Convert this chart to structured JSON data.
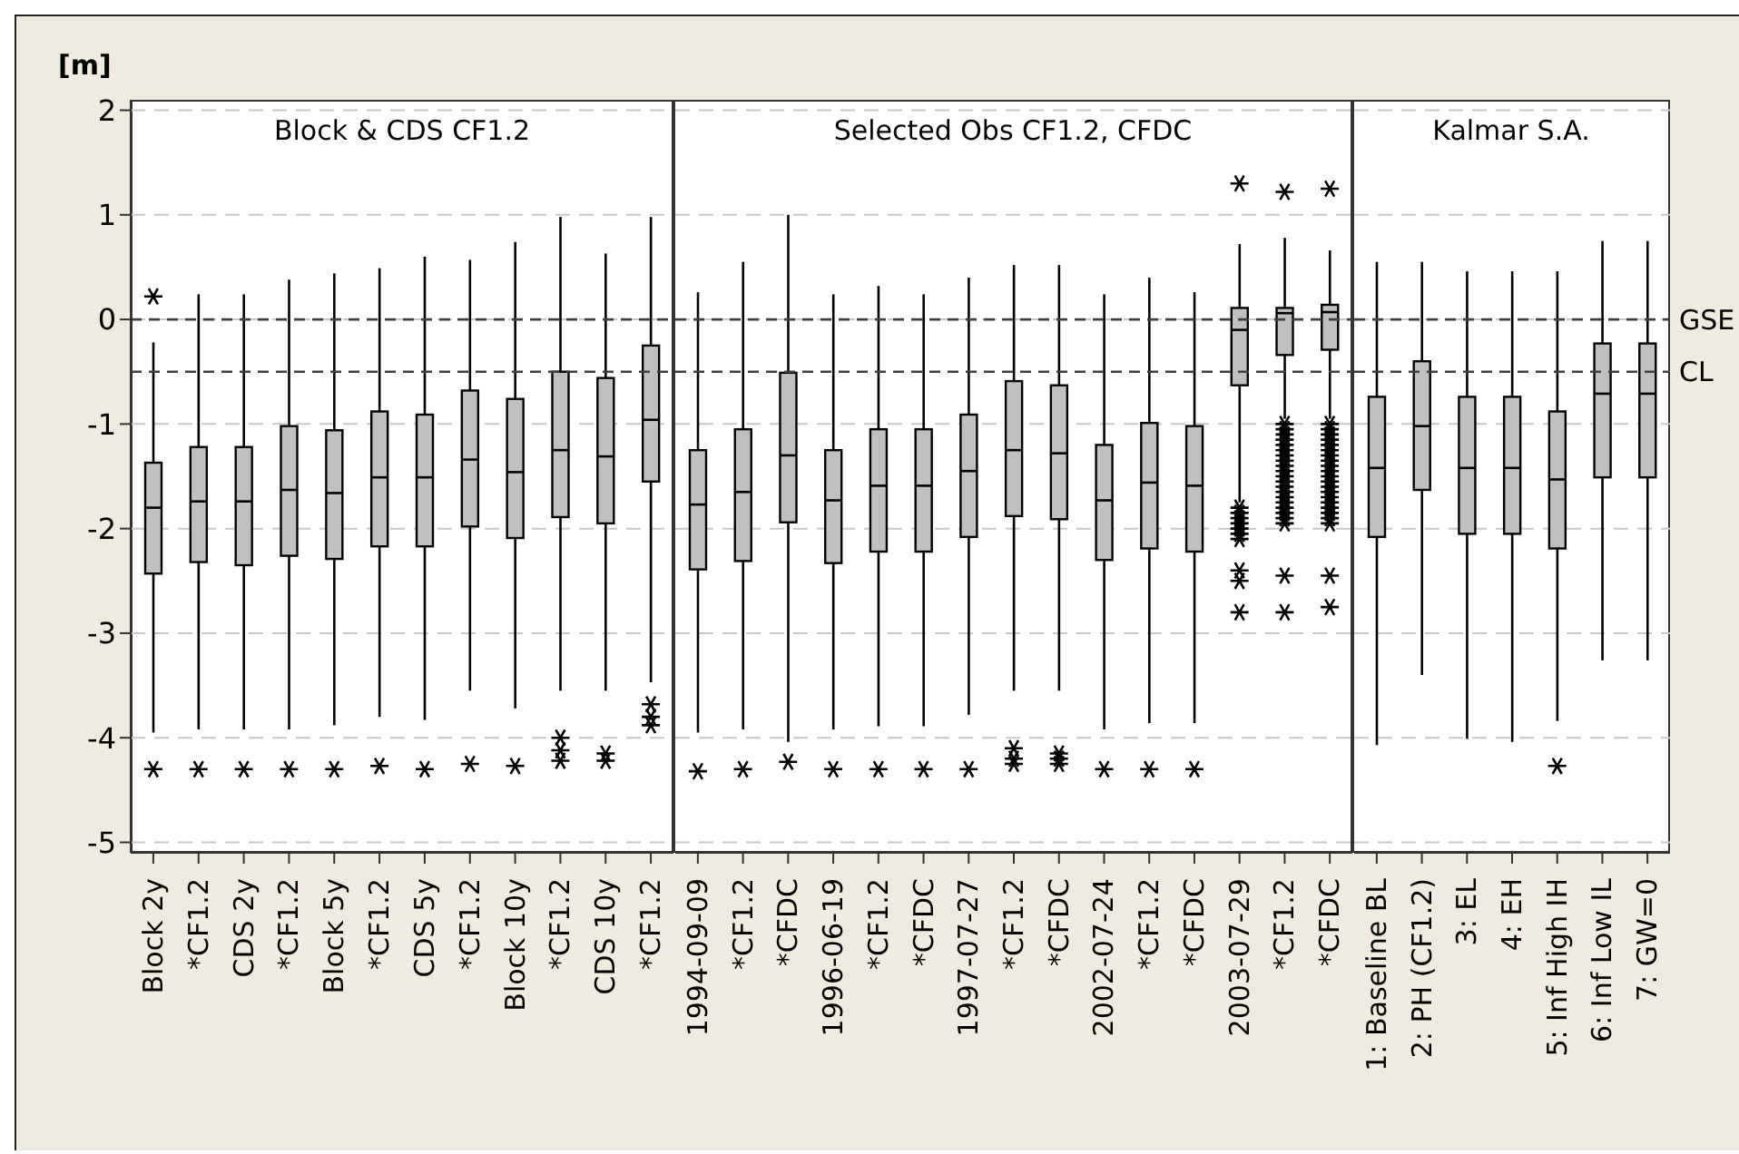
{
  "chart_data": [
    {
      "type": "box",
      "title": "Block & CDS CF1.2",
      "ylabel": "[m]",
      "color": "#c0c0c0",
      "marker": "star",
      "grid": "y",
      "ylim": [
        -5.1,
        2.1
      ],
      "yticks": [
        -5,
        -4,
        -3,
        -2,
        -1,
        0,
        1,
        2
      ],
      "categories": [
        "Block 2y",
        "*CF1.2",
        "CDS 2y",
        "*CF1.2",
        "Block 5y",
        "*CF1.2",
        "CDS 5y",
        "*CF1.2",
        "Block 10y",
        "*CF1.2",
        "CDS 10y",
        "*CF1.2"
      ],
      "boxes": [
        {
          "low": -3.95,
          "q1": -2.43,
          "median": -1.8,
          "q3": -1.37,
          "high": -0.22,
          "outliers": [
            0.22,
            -4.3
          ]
        },
        {
          "low": -3.92,
          "q1": -2.32,
          "median": -1.74,
          "q3": -1.22,
          "high": 0.24,
          "outliers": [
            -4.3
          ]
        },
        {
          "low": -3.92,
          "q1": -2.35,
          "median": -1.74,
          "q3": -1.22,
          "high": 0.24,
          "outliers": [
            -4.3
          ]
        },
        {
          "low": -3.92,
          "q1": -2.26,
          "median": -1.63,
          "q3": -1.02,
          "high": 0.38,
          "outliers": [
            -4.3
          ]
        },
        {
          "low": -3.88,
          "q1": -2.29,
          "median": -1.66,
          "q3": -1.06,
          "high": 0.44,
          "outliers": [
            -4.3
          ]
        },
        {
          "low": -3.8,
          "q1": -2.17,
          "median": -1.51,
          "q3": -0.88,
          "high": 0.49,
          "outliers": [
            -4.27
          ]
        },
        {
          "low": -3.83,
          "q1": -2.17,
          "median": -1.51,
          "q3": -0.91,
          "high": 0.6,
          "outliers": [
            -4.3
          ]
        },
        {
          "low": -3.55,
          "q1": -1.98,
          "median": -1.34,
          "q3": -0.68,
          "high": 0.57,
          "outliers": [
            -4.25
          ]
        },
        {
          "low": -3.72,
          "q1": -2.09,
          "median": -1.46,
          "q3": -0.76,
          "high": 0.74,
          "outliers": [
            -4.27
          ]
        },
        {
          "low": -3.55,
          "q1": -1.89,
          "median": -1.25,
          "q3": -0.5,
          "high": 0.98,
          "outliers": [
            -4.0,
            -4.12,
            -4.22
          ]
        },
        {
          "low": -3.55,
          "q1": -1.95,
          "median": -1.31,
          "q3": -0.56,
          "high": 0.63,
          "outliers": [
            -4.15,
            -4.22
          ]
        },
        {
          "low": -3.47,
          "q1": -1.55,
          "median": -0.96,
          "q3": -0.25,
          "high": 0.98,
          "outliers": [
            -3.68,
            -3.8,
            -3.88
          ]
        }
      ],
      "ref_lines": [
        {
          "axis": "y",
          "value": 0,
          "color": "#404040",
          "line_style": "dashed"
        },
        {
          "axis": "y",
          "value": -0.5,
          "color": "#404040",
          "line_style": "dashed"
        }
      ]
    },
    {
      "type": "box",
      "title": "Selected Obs CF1.2, CFDC",
      "color": "#c0c0c0",
      "marker": "star",
      "grid": "y",
      "tick_labels": "x",
      "ylim": [
        -5.1,
        2.1
      ],
      "yticks": [
        -5,
        -4,
        -3,
        -2,
        -1,
        0,
        1,
        2
      ],
      "categories": [
        "1994-09-09",
        "*CF1.2",
        "*CFDC",
        "1996-06-19",
        "*CF1.2",
        "*CFDC",
        "1997-07-27",
        "*CF1.2",
        "*CFDC",
        "2002-07-24",
        "*CF1.2",
        "*CFDC",
        "2003-07-29",
        "*CF1.2",
        "*CFDC"
      ],
      "boxes": [
        {
          "low": -3.95,
          "q1": -2.39,
          "median": -1.77,
          "q3": -1.25,
          "high": 0.26,
          "outliers": [
            -4.32
          ]
        },
        {
          "low": -3.92,
          "q1": -2.31,
          "median": -1.65,
          "q3": -1.05,
          "high": 0.55,
          "outliers": [
            -4.3
          ]
        },
        {
          "low": -4.04,
          "q1": -1.94,
          "median": -1.3,
          "q3": -0.51,
          "high": 1.0,
          "outliers": [
            -4.23
          ]
        },
        {
          "low": -3.92,
          "q1": -2.33,
          "median": -1.73,
          "q3": -1.25,
          "high": 0.24,
          "outliers": [
            -4.3
          ]
        },
        {
          "low": -3.89,
          "q1": -2.22,
          "median": -1.59,
          "q3": -1.05,
          "high": 0.32,
          "outliers": [
            -4.3
          ]
        },
        {
          "low": -3.89,
          "q1": -2.22,
          "median": -1.59,
          "q3": -1.05,
          "high": 0.24,
          "outliers": [
            -4.3
          ]
        },
        {
          "low": -3.78,
          "q1": -2.08,
          "median": -1.45,
          "q3": -0.91,
          "high": 0.4,
          "outliers": [
            -4.3
          ]
        },
        {
          "low": -3.55,
          "q1": -1.88,
          "median": -1.25,
          "q3": -0.59,
          "high": 0.52,
          "outliers": [
            -4.1,
            -4.2,
            -4.25
          ]
        },
        {
          "low": -3.55,
          "q1": -1.91,
          "median": -1.28,
          "q3": -0.63,
          "high": 0.52,
          "outliers": [
            -4.15,
            -4.2,
            -4.25
          ]
        },
        {
          "low": -3.92,
          "q1": -2.3,
          "median": -1.73,
          "q3": -1.2,
          "high": 0.24,
          "outliers": [
            -4.3
          ]
        },
        {
          "low": -3.86,
          "q1": -2.19,
          "median": -1.56,
          "q3": -0.99,
          "high": 0.4,
          "outliers": [
            -4.3
          ]
        },
        {
          "low": -3.86,
          "q1": -2.22,
          "median": -1.59,
          "q3": -1.02,
          "high": 0.26,
          "outliers": [
            -4.3
          ]
        },
        {
          "low": -1.75,
          "q1": -0.63,
          "median": -0.1,
          "q3": 0.11,
          "high": 0.72,
          "outliers": [
            1.3,
            -1.8,
            -1.85,
            -1.9,
            -1.95,
            -2.0,
            -2.05,
            -2.1,
            -2.4,
            -2.5,
            -2.8
          ]
        },
        {
          "low": -0.95,
          "q1": -0.34,
          "median": 0.06,
          "q3": 0.11,
          "high": 0.78,
          "outliers": [
            1.22,
            -1.0,
            -1.05,
            -1.1,
            -1.15,
            -1.2,
            -1.25,
            -1.3,
            -1.35,
            -1.4,
            -1.45,
            -1.5,
            -1.55,
            -1.6,
            -1.65,
            -1.7,
            -1.75,
            -1.8,
            -1.85,
            -1.9,
            -1.95,
            -2.45,
            -2.8
          ]
        },
        {
          "low": -0.95,
          "q1": -0.29,
          "median": 0.07,
          "q3": 0.14,
          "high": 0.66,
          "outliers": [
            1.25,
            -1.0,
            -1.05,
            -1.1,
            -1.15,
            -1.2,
            -1.25,
            -1.3,
            -1.35,
            -1.4,
            -1.45,
            -1.5,
            -1.55,
            -1.6,
            -1.65,
            -1.7,
            -1.75,
            -1.8,
            -1.85,
            -1.9,
            -1.95,
            -2.45,
            -2.75
          ]
        }
      ],
      "ref_lines": [
        {
          "axis": "y",
          "value": 0,
          "color": "#404040",
          "line_style": "dashed"
        },
        {
          "axis": "y",
          "value": -0.5,
          "color": "#404040",
          "line_style": "dashed"
        }
      ]
    },
    {
      "type": "box",
      "title": "Kalmar S.A.",
      "color": "#c0c0c0",
      "marker": "star",
      "grid": "y",
      "tick_labels": "x",
      "ylim": [
        -5.1,
        2.1
      ],
      "yticks": [
        -5,
        -4,
        -3,
        -2,
        -1,
        0,
        1,
        2
      ],
      "categories": [
        "1: Baseline BL",
        "2: PH (CF1.2)",
        "3: EL",
        "4: EH",
        "5: Inf High IH",
        "6: Inf Low IL",
        "7: GW=0"
      ],
      "boxes": [
        {
          "low": -4.07,
          "q1": -2.08,
          "median": -1.42,
          "q3": -0.74,
          "high": 0.55
        },
        {
          "low": -3.4,
          "q1": -1.63,
          "median": -1.02,
          "q3": -0.4,
          "high": 0.55
        },
        {
          "low": -4.01,
          "q1": -2.05,
          "median": -1.42,
          "q3": -0.74,
          "high": 0.46
        },
        {
          "low": -4.04,
          "q1": -2.05,
          "median": -1.42,
          "q3": -0.74,
          "high": 0.46
        },
        {
          "low": -3.84,
          "q1": -2.19,
          "median": -1.53,
          "q3": -0.88,
          "high": 0.46,
          "outliers": [
            -4.27
          ]
        },
        {
          "low": -3.26,
          "q1": -1.51,
          "median": -0.71,
          "q3": -0.23,
          "high": 0.75
        },
        {
          "low": -3.26,
          "q1": -1.51,
          "median": -0.71,
          "q3": -0.23,
          "high": 0.75
        }
      ],
      "ref_lines": [
        {
          "axis": "y",
          "value": 0,
          "label": "GSE",
          "color": "#404040",
          "line_style": "dashed"
        },
        {
          "axis": "y",
          "value": -0.5,
          "label": "CL",
          "color": "#404040",
          "line_style": "dashed"
        }
      ]
    }
  ]
}
